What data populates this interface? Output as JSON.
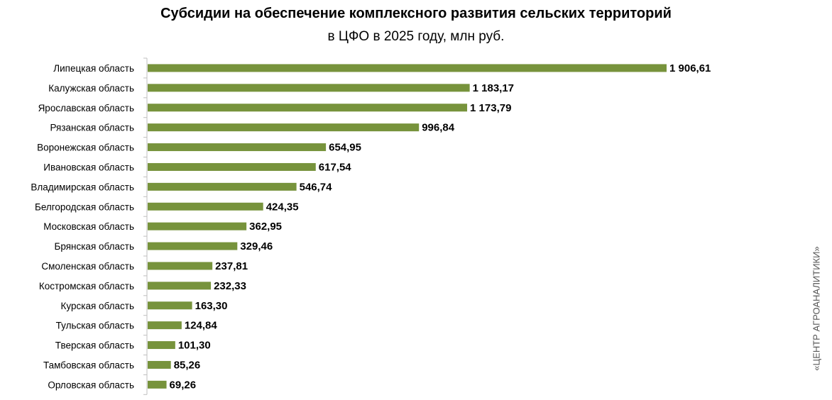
{
  "chart_data": {
    "type": "bar",
    "orientation": "horizontal",
    "title": "Субсидии на обеспечение комплексного развития сельских территорий",
    "subtitle": "в ЦФО в 2025 году, млн руб.",
    "categories": [
      "Липецкая область",
      "Калужская область",
      "Ярославская область",
      "Рязанская область",
      "Воронежская область",
      "Ивановская область",
      "Владимирская область",
      "Белгородская область",
      "Московская область",
      "Брянская область",
      "Смоленская область",
      "Костромская область",
      "Курская область",
      "Тульская область",
      "Тверская область",
      "Тамбовская область",
      "Орловская область"
    ],
    "values": [
      1906.61,
      1183.17,
      1173.79,
      996.84,
      654.95,
      617.54,
      546.74,
      424.35,
      362.95,
      329.46,
      237.81,
      232.33,
      163.3,
      124.84,
      101.3,
      85.26,
      69.26
    ],
    "value_labels": [
      "1 906,61",
      "1 183,17",
      "1 173,79",
      "996,84",
      "654,95",
      "617,54",
      "546,74",
      "424,35",
      "362,95",
      "329,46",
      "237,81",
      "232,33",
      "163,30",
      "124,84",
      "101,30",
      "85,26",
      "69,26"
    ],
    "bar_color": "#77933c",
    "grid": false,
    "legend": "none"
  },
  "watermark": "«ЦЕНТР АГРОАНАЛИТИКИ»"
}
